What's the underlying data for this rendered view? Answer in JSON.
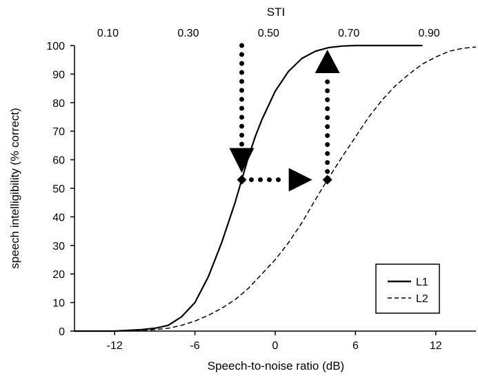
{
  "chart_data": {
    "type": "line",
    "xlabel": "Speech-to-noise ratio (dB)",
    "ylabel": "speech intelligibility (% correct)",
    "top_axis_label": "STI",
    "xlim": [
      -15,
      15
    ],
    "ylim": [
      0,
      100
    ],
    "x_ticks": [
      -12,
      -6,
      0,
      6,
      12
    ],
    "x_tick_labels": [
      "-12",
      "-6",
      "0",
      "6",
      "12"
    ],
    "y_ticks": [
      0,
      10,
      20,
      30,
      40,
      50,
      60,
      70,
      80,
      90,
      100
    ],
    "y_tick_labels": [
      "0",
      "10",
      "20",
      "30",
      "40",
      "50",
      "60",
      "70",
      "80",
      "90",
      "100"
    ],
    "top_ticks": [
      0.1,
      0.3,
      0.5,
      0.7,
      0.9
    ],
    "top_tick_labels": [
      "0.10",
      "0.30",
      "0.50",
      "0.70",
      "0.90"
    ],
    "grid": false,
    "legend_position": "bottom-right",
    "series": [
      {
        "name": "L1",
        "style": "solid",
        "x": [
          -15,
          -12,
          -10,
          -9,
          -8,
          -7,
          -6,
          -5,
          -4,
          -3,
          -2.5,
          -2,
          -1.5,
          -1,
          0,
          1,
          2,
          3,
          4,
          5,
          6,
          8,
          11
        ],
        "y": [
          0,
          0,
          0.5,
          1,
          2,
          5,
          10,
          19,
          31,
          45,
          53,
          61,
          68,
          74,
          84,
          91,
          95.5,
          98,
          99.3,
          99.8,
          100,
          100,
          100
        ]
      },
      {
        "name": "L2",
        "style": "dashed",
        "x": [
          -15,
          -12,
          -10,
          -9,
          -8,
          -7,
          -6,
          -5,
          -4,
          -3,
          -2,
          -1,
          0,
          1,
          2,
          3,
          3.9,
          5,
          6,
          7,
          8,
          9,
          10,
          11,
          12,
          13,
          14,
          15
        ],
        "y": [
          0,
          0,
          0.3,
          0.5,
          1,
          2,
          3.5,
          5.5,
          8,
          11,
          15,
          20,
          25,
          31,
          38,
          46,
          53,
          61,
          68,
          75,
          81,
          86,
          90,
          93.5,
          96,
          98,
          99,
          99.5
        ]
      }
    ],
    "annotations": {
      "marker_color": "#000000",
      "points": [
        {
          "x": -2.5,
          "y": 53
        },
        {
          "x": 3.9,
          "y": 53
        }
      ],
      "arrows": [
        {
          "direction": "down",
          "x": -2.5,
          "from_y": 100,
          "to_y": 53
        },
        {
          "direction": "right",
          "y": 53,
          "from_x": -2.5,
          "to_x": 3.9
        },
        {
          "direction": "up",
          "x": 3.9,
          "from_y": 53,
          "to_y": 100
        }
      ]
    },
    "legend": {
      "entries": [
        "L1",
        "L2"
      ]
    }
  }
}
